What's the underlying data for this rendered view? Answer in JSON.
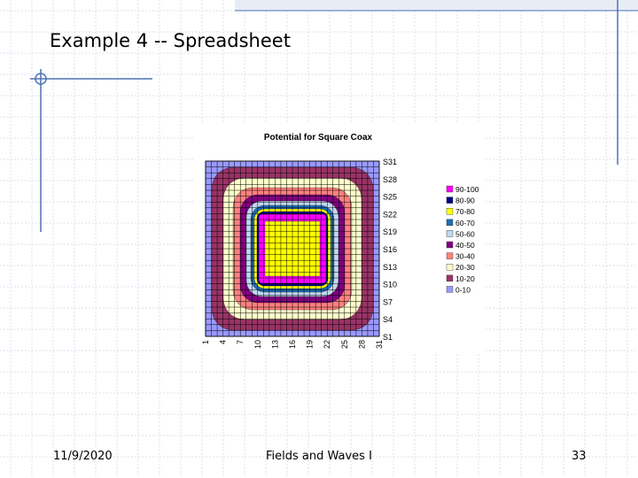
{
  "slide": {
    "title": "Example 4 -- Spreadsheet",
    "footer_date": "11/9/2020",
    "footer_center": "Fields and Waves I",
    "page_number": "33",
    "accent_color": "#4d72b3",
    "grid_color": "#dbe2ee"
  },
  "chart_data": {
    "type": "contour",
    "title": "Potential for Square Coax",
    "x_tick_labels": [
      "1",
      "4",
      "7",
      "10",
      "13",
      "16",
      "19",
      "22",
      "25",
      "28",
      "31"
    ],
    "y_tick_labels": [
      "S31",
      "S28",
      "S25",
      "S22",
      "S19",
      "S16",
      "S13",
      "S10",
      "S7",
      "S4",
      "S1"
    ],
    "x_range": [
      1,
      31
    ],
    "y_range": [
      1,
      31
    ],
    "grid": true,
    "legend_placement": "right",
    "legend": [
      {
        "label": "90-100",
        "color": "#ff00ff"
      },
      {
        "label": "80-90",
        "color": "#000080"
      },
      {
        "label": "70-80",
        "color": "#ffff00"
      },
      {
        "label": "60-70",
        "color": "#1f6db5"
      },
      {
        "label": "50-60",
        "color": "#c0d8f0"
      },
      {
        "label": "40-50",
        "color": "#800080"
      },
      {
        "label": "30-40",
        "color": "#ff8080"
      },
      {
        "label": "20-30",
        "color": "#ffffcc"
      },
      {
        "label": "10-20",
        "color": "#993366"
      },
      {
        "label": "0-10",
        "color": "#9999ff"
      }
    ],
    "contour_colors_outer_to_inner": [
      "#9999ff",
      "#993366",
      "#ffffcc",
      "#ff8080",
      "#800080",
      "#c0d8f0",
      "#1f6db5",
      "#ffff00",
      "#000080",
      "#ff00ff",
      "#ffff00"
    ]
  }
}
